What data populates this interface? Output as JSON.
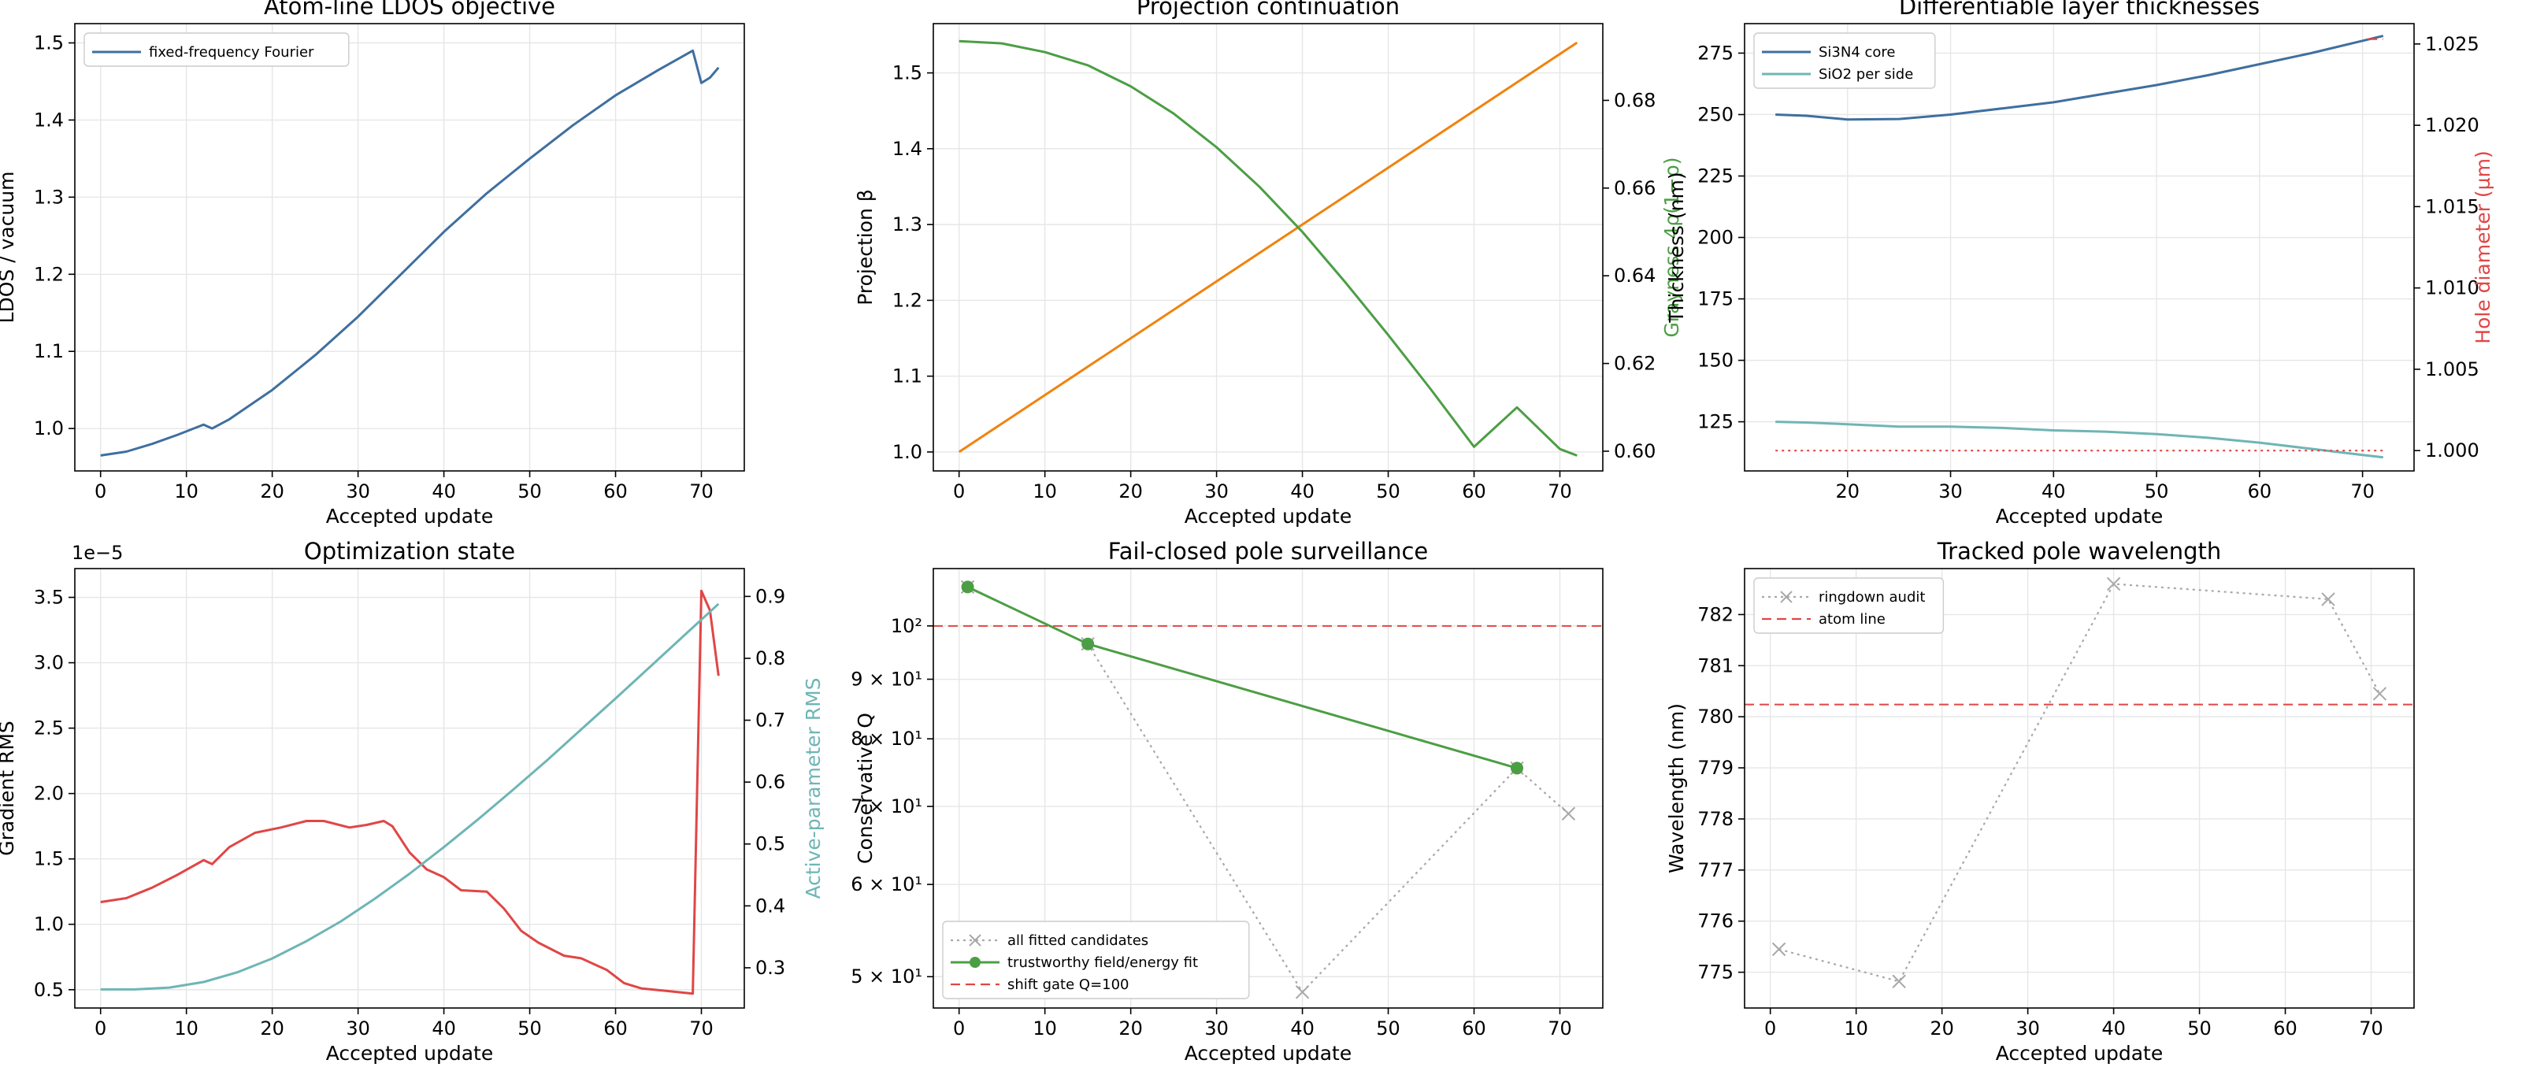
{
  "colors": {
    "blue": "#3f6f9f",
    "teal": "#6fb5b5",
    "green": "#4c9e44",
    "orange": "#f0830e",
    "red": "#e04646",
    "gray": "#a8a8a8",
    "grid": "#e6e6e6"
  },
  "chart_data": [
    {
      "type": "line",
      "title": "Atom-line LDOS objective",
      "xlabel": "Accepted update",
      "ylabel": "LDOS / vacuum",
      "xlim": [
        -3,
        75
      ],
      "ylim": [
        0.945,
        1.525
      ],
      "xticks": [
        0,
        10,
        20,
        30,
        40,
        50,
        60,
        70
      ],
      "yticks": [
        1.0,
        1.1,
        1.2,
        1.3,
        1.4,
        1.5
      ],
      "yticklabels": [
        "1.0",
        "1.1",
        "1.2",
        "1.3",
        "1.4",
        "1.5"
      ],
      "grid": true,
      "legend_position": "upper-left",
      "series": [
        {
          "name": "fixed-frequency Fourier",
          "color": "blue",
          "x": [
            0,
            3,
            6,
            9,
            12,
            13,
            15,
            20,
            25,
            30,
            35,
            40,
            45,
            50,
            55,
            60,
            65,
            69,
            70,
            71,
            72
          ],
          "y": [
            0.965,
            0.97,
            0.98,
            0.992,
            1.005,
            1.0,
            1.012,
            1.05,
            1.095,
            1.145,
            1.2,
            1.255,
            1.305,
            1.35,
            1.393,
            1.432,
            1.465,
            1.49,
            1.448,
            1.455,
            1.468
          ]
        }
      ]
    },
    {
      "type": "line",
      "title": "Projection continuation",
      "xlabel": "Accepted update",
      "ylabel": "Projection β",
      "ylabel_right": "Grayness 4ρ(1−ρ)",
      "xlim": [
        -3,
        75
      ],
      "ylim": [
        0.975,
        1.565
      ],
      "ylim_right": [
        0.5955,
        0.6975
      ],
      "xticks": [
        0,
        10,
        20,
        30,
        40,
        50,
        60,
        70
      ],
      "yticks": [
        1.0,
        1.1,
        1.2,
        1.3,
        1.4,
        1.5
      ],
      "yticklabels": [
        "1.0",
        "1.1",
        "1.2",
        "1.3",
        "1.4",
        "1.5"
      ],
      "yticks_right": [
        0.6,
        0.62,
        0.64,
        0.66,
        0.68
      ],
      "yticklabels_right": [
        "0.60",
        "0.62",
        "0.64",
        "0.66",
        "0.68"
      ],
      "grid": true,
      "series": [
        {
          "color": "orange",
          "axis": "left",
          "x": [
            0,
            72
          ],
          "y": [
            1.0,
            1.54
          ]
        },
        {
          "color": "green",
          "axis": "right",
          "x": [
            0,
            5,
            10,
            15,
            20,
            25,
            30,
            35,
            40,
            45,
            50,
            55,
            60,
            65,
            70,
            72
          ],
          "y": [
            0.6935,
            0.693,
            0.691,
            0.688,
            0.6832,
            0.677,
            0.6693,
            0.6603,
            0.65,
            0.6385,
            0.6265,
            0.614,
            0.601,
            0.61,
            0.6005,
            0.599
          ]
        }
      ]
    },
    {
      "type": "line",
      "title": "Differentiable layer thicknesses",
      "xlabel": "Accepted update",
      "ylabel": "Thickness (nm)",
      "ylabel_right": "Hole diameter (µm)",
      "xlim": [
        10,
        75
      ],
      "ylim": [
        105,
        287
      ],
      "ylim_right": [
        0.99875,
        1.02625
      ],
      "xticks": [
        20,
        30,
        40,
        50,
        60,
        70
      ],
      "yticks": [
        125,
        150,
        175,
        200,
        225,
        250,
        275
      ],
      "yticklabels": [
        "125",
        "150",
        "175",
        "200",
        "225",
        "250",
        "275"
      ],
      "yticks_right": [
        1.0,
        1.005,
        1.01,
        1.015,
        1.02,
        1.025
      ],
      "yticklabels_right": [
        "1.000",
        "1.005",
        "1.010",
        "1.015",
        "1.020",
        "1.025"
      ],
      "grid": true,
      "legend_position": "upper-left",
      "series": [
        {
          "name": "Si3N4 core",
          "color": "blue",
          "axis": "left",
          "x": [
            13,
            16,
            20,
            25,
            30,
            35,
            40,
            45,
            50,
            55,
            60,
            65,
            70,
            72
          ],
          "y": [
            250,
            249.5,
            248,
            248.2,
            250,
            252.5,
            255,
            258.5,
            262,
            266,
            270.5,
            275,
            280,
            282
          ]
        },
        {
          "name": "SiO2 per side",
          "color": "teal",
          "axis": "left",
          "x": [
            13,
            16,
            20,
            25,
            30,
            35,
            40,
            45,
            50,
            55,
            60,
            65,
            70,
            72
          ],
          "y": [
            125,
            124.7,
            124,
            123,
            123,
            122.5,
            121.5,
            121,
            120,
            118.5,
            116.5,
            114,
            111.5,
            110.5
          ]
        },
        {
          "color": "red",
          "axis": "right",
          "style": "dotted",
          "x": [
            13,
            72
          ],
          "y": [
            1.0,
            1.0
          ]
        },
        {
          "color": "red",
          "axis": "right",
          "style": "dashed",
          "x": [
            70.5,
            72
          ],
          "y": [
            1.0253,
            1.0253
          ]
        }
      ]
    },
    {
      "type": "line",
      "title": "Optimization state",
      "xlabel": "Accepted update",
      "ylabel": "Gradient RMS",
      "ylabel_right": "Active-parameter RMS",
      "y_offset_label": "1e−5",
      "xlim": [
        -3,
        75
      ],
      "ylim": [
        0.36,
        3.72
      ],
      "ylim_right": [
        0.235,
        0.945
      ],
      "xticks": [
        0,
        10,
        20,
        30,
        40,
        50,
        60,
        70
      ],
      "yticks": [
        0.5,
        1.0,
        1.5,
        2.0,
        2.5,
        3.0,
        3.5
      ],
      "yticklabels": [
        "0.5",
        "1.0",
        "1.5",
        "2.0",
        "2.5",
        "3.0",
        "3.5"
      ],
      "yticks_right": [
        0.3,
        0.4,
        0.5,
        0.6,
        0.7,
        0.8,
        0.9
      ],
      "yticklabels_right": [
        "0.3",
        "0.4",
        "0.5",
        "0.6",
        "0.7",
        "0.8",
        "0.9"
      ],
      "grid": true,
      "series": [
        {
          "color": "red",
          "axis": "left",
          "x": [
            0,
            3,
            6,
            9,
            12,
            13,
            15,
            18,
            21,
            24,
            26,
            29,
            31,
            33,
            34,
            36,
            38,
            40,
            42,
            45,
            47,
            49,
            51,
            54,
            56,
            59,
            61,
            63,
            66,
            69,
            70,
            71,
            72
          ],
          "y": [
            1.17,
            1.2,
            1.28,
            1.38,
            1.49,
            1.46,
            1.59,
            1.7,
            1.74,
            1.79,
            1.79,
            1.74,
            1.76,
            1.79,
            1.75,
            1.55,
            1.42,
            1.36,
            1.26,
            1.25,
            1.12,
            0.95,
            0.86,
            0.76,
            0.74,
            0.65,
            0.55,
            0.51,
            0.49,
            0.47,
            3.55,
            3.4,
            2.9
          ]
        },
        {
          "color": "teal",
          "axis": "right",
          "x": [
            0,
            4,
            8,
            12,
            16,
            20,
            24,
            28,
            32,
            36,
            40,
            44,
            48,
            52,
            56,
            60,
            64,
            68,
            72
          ],
          "y": [
            0.265,
            0.265,
            0.268,
            0.277,
            0.293,
            0.315,
            0.343,
            0.375,
            0.412,
            0.452,
            0.495,
            0.54,
            0.587,
            0.635,
            0.685,
            0.735,
            0.786,
            0.837,
            0.888
          ]
        }
      ]
    },
    {
      "type": "line",
      "title": "Fail-closed pole surveillance",
      "xlabel": "Accepted update",
      "ylabel": "Conservative Q",
      "yscale": "log",
      "xlim": [
        -3,
        75
      ],
      "ylim": [
        47,
        112
      ],
      "xticks": [
        0,
        10,
        20,
        30,
        40,
        50,
        60,
        70
      ],
      "yticks": [
        50,
        60,
        70,
        80,
        90,
        100
      ],
      "yticklabels": [
        "5 × 10¹",
        "6 × 10¹",
        "7 × 10¹",
        "8 × 10¹",
        "9 × 10¹",
        "10²"
      ],
      "grid": true,
      "legend_position": "lower-left",
      "series": [
        {
          "name": "all fitted candidates",
          "color": "gray",
          "style": "dotted",
          "marker": "x",
          "x": [
            1,
            15,
            40,
            65,
            71
          ],
          "y": [
            108,
            96.5,
            48.5,
            75.5,
            69
          ]
        },
        {
          "name": "trustworthy field/energy fit",
          "color": "green",
          "marker": "o",
          "x": [
            1,
            15,
            65
          ],
          "y": [
            108,
            96.5,
            75.5
          ]
        },
        {
          "name": "shift gate Q=100",
          "color": "red",
          "style": "dashed",
          "hline": 100
        }
      ]
    },
    {
      "type": "line",
      "title": "Tracked pole wavelength",
      "xlabel": "Accepted update",
      "ylabel": "Wavelength (nm)",
      "xlim": [
        -3,
        75
      ],
      "ylim": [
        774.3,
        782.9
      ],
      "xticks": [
        0,
        10,
        20,
        30,
        40,
        50,
        60,
        70
      ],
      "yticks": [
        775,
        776,
        777,
        778,
        779,
        780,
        781,
        782
      ],
      "yticklabels": [
        "775",
        "776",
        "777",
        "778",
        "779",
        "780",
        "781",
        "782"
      ],
      "grid": true,
      "legend_position": "upper-left",
      "series": [
        {
          "name": "ringdown audit",
          "color": "gray",
          "style": "dotted",
          "marker": "x",
          "x": [
            1,
            15,
            40,
            65,
            71
          ],
          "y": [
            775.45,
            774.82,
            782.6,
            782.3,
            780.45
          ]
        },
        {
          "name": "atom line",
          "color": "red",
          "style": "dashed",
          "hline": 780.24
        }
      ]
    }
  ]
}
